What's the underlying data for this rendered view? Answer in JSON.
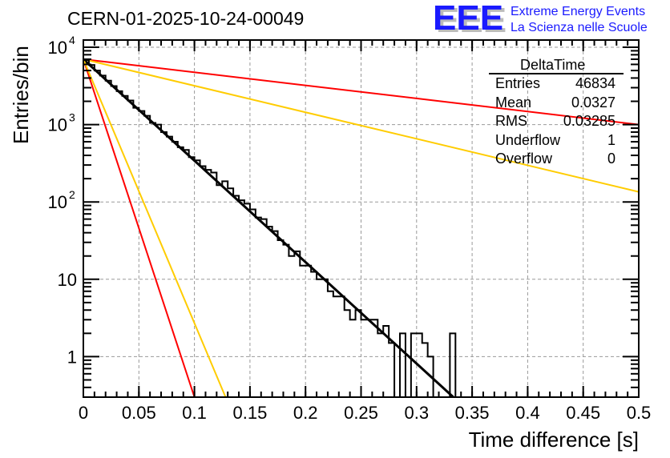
{
  "chart_data": {
    "type": "bar",
    "style": "step-histogram",
    "title": "CERN-01-2025-10-24-00049",
    "xlabel": "Time difference [s]",
    "ylabel": "Entries/bin",
    "xlim": [
      0,
      0.5
    ],
    "ylim": [
      0.3,
      11000
    ],
    "yscale": "log",
    "grid": true,
    "x_ticks": [
      "0",
      "0.05",
      "0.1",
      "0.15",
      "0.2",
      "0.25",
      "0.3",
      "0.35",
      "0.4",
      "0.45",
      "0.5"
    ],
    "x_tick_values": [
      0,
      0.05,
      0.1,
      0.15,
      0.2,
      0.25,
      0.3,
      0.35,
      0.4,
      0.45,
      0.5
    ],
    "y_ticks": [
      {
        "value": 10000,
        "base": "10",
        "exp": "4"
      },
      {
        "value": 1000,
        "base": "10",
        "exp": "3"
      },
      {
        "value": 100,
        "base": "10",
        "exp": "2"
      },
      {
        "value": 10,
        "base": "10",
        "exp": ""
      },
      {
        "value": 1,
        "base": "1",
        "exp": ""
      }
    ],
    "bin_width": 0.005,
    "histogram": {
      "name": "DeltaTime",
      "color": "#000000",
      "values": [
        6800,
        5900,
        5000,
        4300,
        3700,
        3150,
        2700,
        2350,
        2050,
        1650,
        1500,
        1300,
        1050,
        1000,
        800,
        700,
        600,
        510,
        470,
        380,
        345,
        290,
        260,
        240,
        165,
        185,
        150,
        120,
        105,
        95,
        80,
        63,
        60,
        48,
        42,
        32,
        28,
        20,
        23,
        15,
        15,
        12.5,
        10,
        10,
        7,
        6,
        6,
        4,
        3,
        4,
        3,
        3,
        3,
        2,
        2.5,
        1.5,
        0,
        2,
        0,
        2,
        2,
        1.5,
        1,
        0,
        0,
        0,
        2,
        0,
        0,
        0,
        0,
        0,
        0,
        0,
        0,
        0,
        0,
        0,
        0,
        0,
        0,
        0,
        0,
        0,
        0,
        0,
        0,
        0,
        0,
        0,
        0,
        0,
        0,
        0,
        0,
        0,
        0,
        0,
        0,
        0
      ]
    },
    "fit_lines": [
      {
        "name": "fit",
        "color": "#000000",
        "x0": 0,
        "y0": 7000,
        "x1": 0.333,
        "y1": 0.3
      },
      {
        "name": "red-steep",
        "color": "#ff0000",
        "x0": 0,
        "y0": 7000,
        "x1": 0.1,
        "y1": 0.3
      },
      {
        "name": "yellow-steep",
        "color": "#ffcc00",
        "x0": 0,
        "y0": 7000,
        "x1": 0.128,
        "y1": 0.3
      },
      {
        "name": "red-shallow",
        "color": "#ff0000",
        "x0": 0,
        "y0": 7000,
        "x1": 0.5,
        "y1": 1000
      },
      {
        "name": "yellow-shallow",
        "color": "#ffcc00",
        "x0": 0,
        "y0": 7000,
        "x1": 0.5,
        "y1": 135
      }
    ]
  },
  "stats_box": {
    "title": "DeltaTime",
    "rows": [
      {
        "label": "Entries",
        "value": "46834"
      },
      {
        "label": "Mean",
        "value": "0.0327"
      },
      {
        "label": "RMS",
        "value": "0.03285"
      },
      {
        "label": "Underflow",
        "value": "1"
      },
      {
        "label": "Overflow",
        "value": "0"
      }
    ]
  },
  "logo": {
    "mark": "EEE",
    "line1": "Extreme Energy Events",
    "line2": "La Scienza nelle Scuole",
    "color": "#1a1aff"
  }
}
